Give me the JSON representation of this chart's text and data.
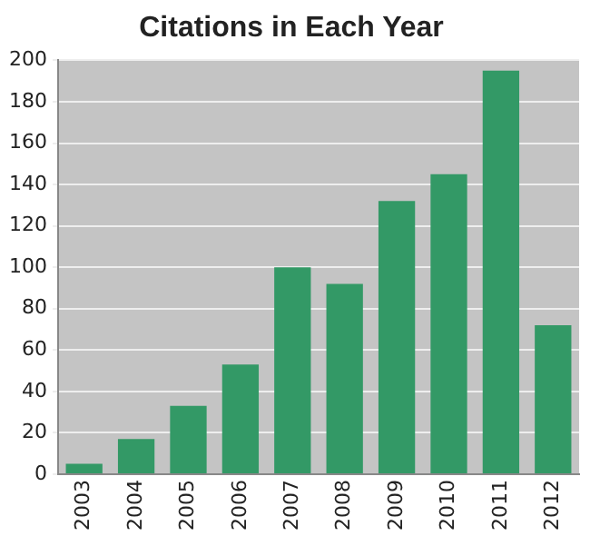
{
  "chart_data": {
    "type": "bar",
    "title": "Citations in Each Year",
    "categories": [
      "2003",
      "2004",
      "2005",
      "2006",
      "2007",
      "2008",
      "2009",
      "2010",
      "2011",
      "2012"
    ],
    "values": [
      5,
      17,
      33,
      53,
      100,
      92,
      132,
      145,
      195,
      72
    ],
    "color": "#339966",
    "ylim": [
      0,
      200
    ],
    "yticks": [
      0,
      20,
      40,
      60,
      80,
      100,
      120,
      140,
      160,
      180,
      200
    ],
    "grid": "y",
    "legend": false
  }
}
